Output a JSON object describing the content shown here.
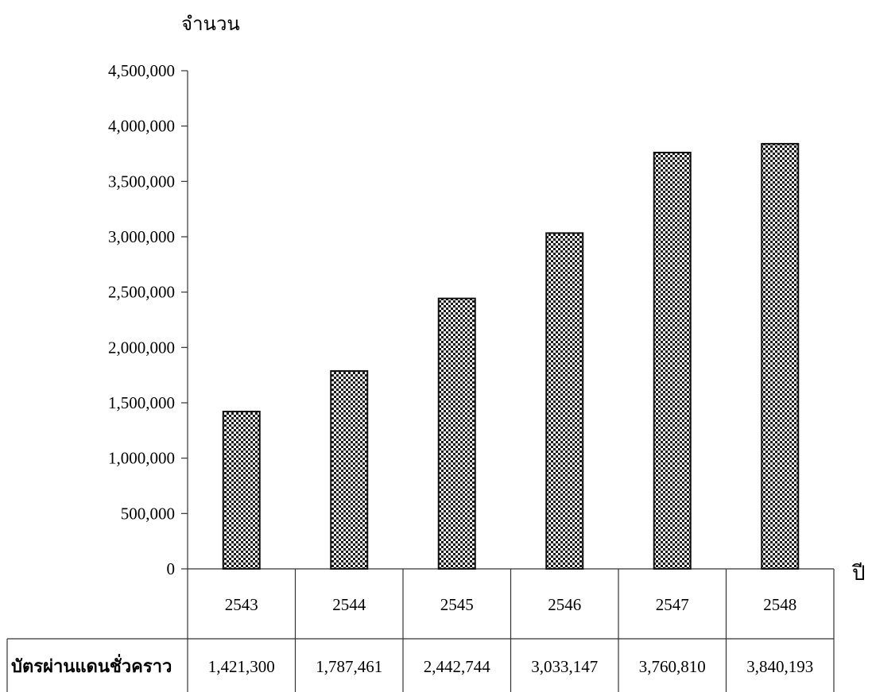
{
  "chart_data": {
    "type": "bar",
    "ylabel": "จำนวน",
    "xlabel": "ปี",
    "categories": [
      "2543",
      "2544",
      "2545",
      "2546",
      "2547",
      "2548"
    ],
    "series": [
      {
        "name": "บัตรผ่านแดนชั่วคราว",
        "values": [
          1421300,
          1787461,
          2442744,
          3033147,
          3760810,
          3840193
        ],
        "value_labels": [
          "1,421,300",
          "1,787,461",
          "2,442,744",
          "3,033,147",
          "3,760,810",
          "3,840,193"
        ]
      }
    ],
    "ylim": [
      0,
      4500000
    ],
    "yticks": [
      0,
      500000,
      1000000,
      1500000,
      2000000,
      2500000,
      3000000,
      3500000,
      4000000,
      4500000
    ],
    "ytick_labels": [
      "0",
      "500,000",
      "1,000,000",
      "1,500,000",
      "2,000,000",
      "2,500,000",
      "3,000,000",
      "3,500,000",
      "4,000,000",
      "4,500,000"
    ],
    "grid": false,
    "bar_pattern": "checkerboard",
    "data_table": true
  }
}
